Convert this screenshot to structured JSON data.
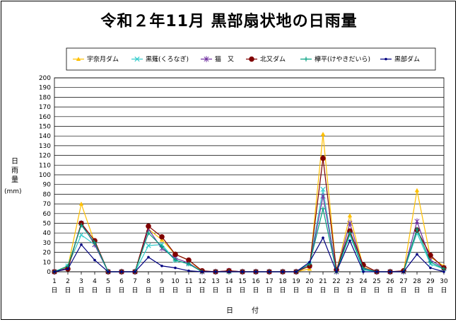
{
  "chart_data": {
    "type": "line",
    "title": "令和２年11月 黒部扇状地の日雨量",
    "xlabel": "日　付",
    "ylabel": "日雨量",
    "yunit": "(mm)",
    "ylim": [
      0,
      200
    ],
    "ystep": 10,
    "grid": true,
    "legend_position": "top",
    "day_suffix": "日",
    "x": [
      1,
      2,
      3,
      4,
      5,
      6,
      7,
      8,
      9,
      10,
      11,
      12,
      13,
      14,
      15,
      16,
      17,
      18,
      19,
      20,
      21,
      22,
      23,
      24,
      25,
      26,
      27,
      28,
      29,
      30
    ],
    "series": [
      {
        "name": "宇奈月ダム",
        "color": "#ffc000",
        "marker": "triangle",
        "values": [
          0,
          5,
          70,
          30,
          0,
          0,
          0,
          44,
          33,
          18,
          12,
          0,
          0,
          0,
          0,
          0,
          0,
          0,
          0,
          3,
          142,
          0,
          58,
          5,
          0,
          0,
          0,
          84,
          15,
          6
        ]
      },
      {
        "name": "黒薙(くろなぎ)",
        "color": "#33cccc",
        "marker": "x",
        "values": [
          0,
          6,
          38,
          28,
          0,
          0,
          0,
          27,
          28,
          12,
          8,
          0,
          0,
          0,
          0,
          0,
          0,
          0,
          0,
          8,
          85,
          0,
          38,
          2,
          0,
          0,
          0,
          40,
          8,
          3
        ]
      },
      {
        "name": "猫　又",
        "color": "#7030a0",
        "marker": "star",
        "values": [
          0,
          4,
          50,
          28,
          0,
          0,
          0,
          44,
          24,
          14,
          9,
          0,
          0,
          1,
          0,
          0,
          0,
          0,
          0,
          6,
          78,
          0,
          50,
          4,
          0,
          0,
          0,
          52,
          12,
          4
        ]
      },
      {
        "name": "北又ダム",
        "color": "#800000",
        "marker": "circle",
        "values": [
          0,
          3,
          50,
          32,
          0,
          0,
          0,
          47,
          36,
          18,
          12,
          1,
          0,
          1,
          0,
          0,
          0,
          0,
          0,
          6,
          117,
          2,
          42,
          7,
          0,
          0,
          1,
          43,
          17,
          4
        ]
      },
      {
        "name": "欅平(けやきだいら)",
        "color": "#00a080",
        "marker": "plus",
        "values": [
          0,
          6,
          48,
          30,
          0,
          0,
          0,
          40,
          26,
          12,
          8,
          0,
          0,
          0,
          0,
          0,
          0,
          0,
          0,
          8,
          65,
          0,
          40,
          3,
          0,
          0,
          0,
          44,
          10,
          3
        ]
      },
      {
        "name": "黒部ダム",
        "color": "#000080",
        "marker": "dot",
        "values": [
          0,
          3,
          28,
          12,
          0,
          0,
          0,
          15,
          6,
          4,
          1,
          0,
          0,
          0,
          0,
          0,
          0,
          0,
          0,
          10,
          35,
          0,
          32,
          0,
          0,
          0,
          0,
          18,
          4,
          0
        ]
      }
    ]
  }
}
